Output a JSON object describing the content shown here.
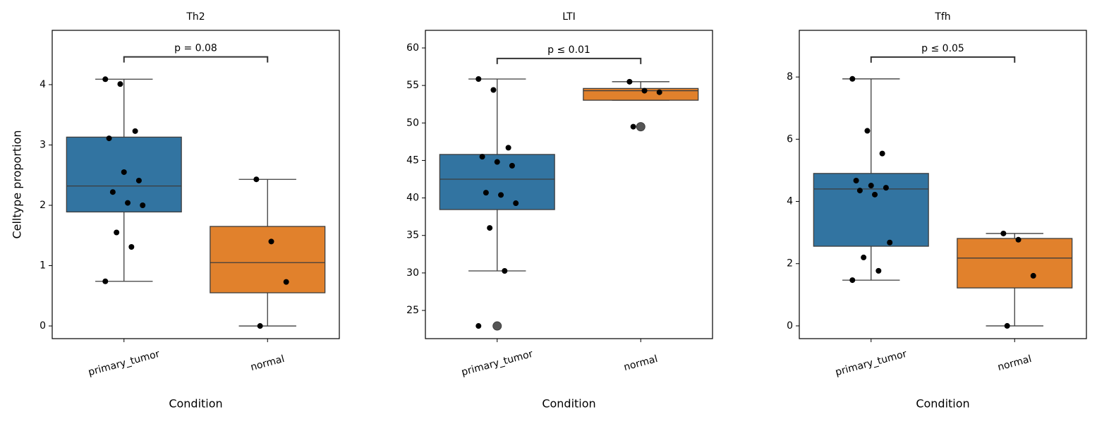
{
  "chart_data": [
    {
      "type": "box",
      "title": "Th2",
      "xlabel": "Condition",
      "ylabel": "Celltype proportion",
      "categories": [
        "primary_tumor",
        "normal"
      ],
      "boxes": [
        {
          "color": "#3274a1",
          "whislo": 0.74,
          "q1": 1.89,
          "med": 2.32,
          "q3": 3.13,
          "whishi": 4.09,
          "fliers": [],
          "points": [
            4.09,
            4.01,
            3.23,
            3.11,
            2.55,
            2.41,
            2.22,
            2.04,
            2.0,
            1.55,
            1.31,
            0.74
          ]
        },
        {
          "color": "#e1812c",
          "whislo": 0,
          "q1": 0.55,
          "med": 1.05,
          "q3": 1.65,
          "whishi": 2.43,
          "fliers": [],
          "points": [
            2.43,
            1.4,
            0.73,
            0
          ]
        }
      ],
      "annotation": {
        "text": "p = 0.08",
        "y": 4.46
      },
      "ylim": [
        -0.21,
        4.9
      ],
      "yticks": [
        0,
        1,
        2,
        3,
        4
      ]
    },
    {
      "type": "box",
      "title": "LTI",
      "xlabel": "Condition",
      "categories": [
        "primary_tumor",
        "normal"
      ],
      "boxes": [
        {
          "color": "#3274a1",
          "whislo": 30.27,
          "q1": 38.45,
          "med": 42.5,
          "q3": 45.8,
          "whishi": 55.86,
          "fliers": [
            22.93
          ],
          "points": [
            55.86,
            54.4,
            46.7,
            45.5,
            44.8,
            44.3,
            40.7,
            40.4,
            39.3,
            36.0,
            30.27,
            22.93
          ]
        },
        {
          "color": "#e1812c",
          "whislo": 53.03,
          "q1": 53.03,
          "med": 54.3,
          "q3": 54.6,
          "whishi": 55.5,
          "fliers": [
            49.5
          ],
          "points": [
            55.5,
            54.3,
            54.1,
            49.5
          ]
        }
      ],
      "annotation": {
        "text": "p ≤ 0.01",
        "y": 58.6
      },
      "ylim": [
        21.24,
        62.35
      ],
      "yticks": [
        25,
        30,
        35,
        40,
        45,
        50,
        55,
        60
      ]
    },
    {
      "type": "box",
      "title": "Tfh",
      "xlabel": "Condition",
      "categories": [
        "primary_tumor",
        "normal"
      ],
      "boxes": [
        {
          "color": "#3274a1",
          "whislo": 1.47,
          "q1": 2.56,
          "med": 4.4,
          "q3": 4.9,
          "whishi": 7.94,
          "fliers": [],
          "points": [
            7.94,
            6.27,
            5.54,
            4.67,
            4.51,
            4.44,
            4.35,
            4.22,
            2.68,
            2.2,
            1.77,
            1.47
          ]
        },
        {
          "color": "#e1812c",
          "whislo": 0,
          "q1": 1.22,
          "med": 2.18,
          "q3": 2.81,
          "whishi": 2.97,
          "fliers": [],
          "points": [
            2.97,
            2.77,
            1.61,
            0
          ]
        }
      ],
      "annotation": {
        "text": "p ≤ 0.05",
        "y": 8.64
      },
      "ylim": [
        -0.41,
        9.5
      ],
      "yticks": [
        0,
        2,
        4,
        6,
        8
      ]
    }
  ]
}
